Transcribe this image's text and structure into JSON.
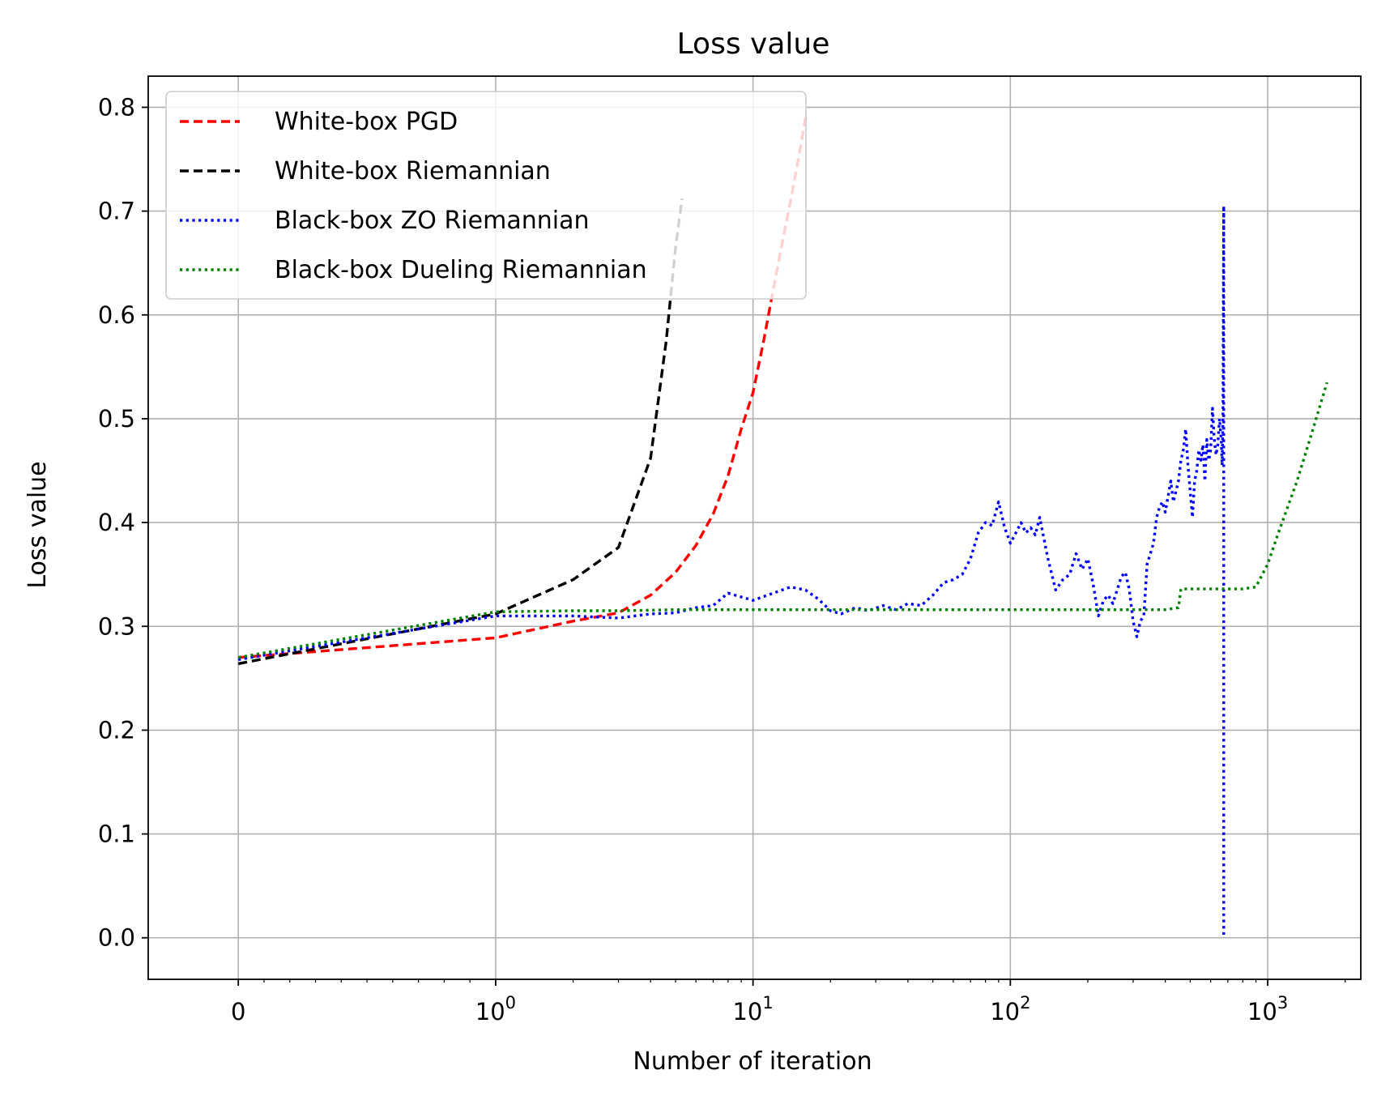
{
  "chart_data": {
    "type": "line",
    "title": "Loss value",
    "xlabel": "Number of iteration",
    "ylabel": "Loss value",
    "xscale": "symlog",
    "xlim": [
      -0.35,
      2300
    ],
    "ylim": [
      -0.04,
      0.83
    ],
    "grid": true,
    "legend_position": "upper-left",
    "xticks": [
      {
        "value": 0,
        "base": "0",
        "exp": ""
      },
      {
        "value": 1,
        "base": "10",
        "exp": "0"
      },
      {
        "value": 10,
        "base": "10",
        "exp": "1"
      },
      {
        "value": 100,
        "base": "10",
        "exp": "2"
      },
      {
        "value": 1000,
        "base": "10",
        "exp": "3"
      }
    ],
    "yticks": [
      {
        "value": 0.0,
        "label": "0.0"
      },
      {
        "value": 0.1,
        "label": "0.1"
      },
      {
        "value": 0.2,
        "label": "0.2"
      },
      {
        "value": 0.3,
        "label": "0.3"
      },
      {
        "value": 0.4,
        "label": "0.4"
      },
      {
        "value": 0.5,
        "label": "0.5"
      },
      {
        "value": 0.6,
        "label": "0.6"
      },
      {
        "value": 0.7,
        "label": "0.7"
      },
      {
        "value": 0.8,
        "label": "0.8"
      }
    ],
    "series": [
      {
        "name": "White-box PGD",
        "color": "#ff0000",
        "style": "dashed",
        "x": [
          0,
          1,
          2,
          3,
          4,
          5,
          6,
          7,
          8,
          9,
          10,
          11,
          12,
          13,
          14,
          15,
          16
        ],
        "y": [
          0.27,
          0.289,
          0.305,
          0.313,
          0.33,
          0.352,
          0.378,
          0.408,
          0.445,
          0.49,
          0.525,
          0.575,
          0.625,
          0.67,
          0.71,
          0.75,
          0.79
        ]
      },
      {
        "name": "White-box Riemannian",
        "color": "#000000",
        "style": "dashed",
        "x": [
          0,
          1,
          2,
          3,
          4,
          4.6,
          5,
          5.3
        ],
        "y": [
          0.264,
          0.312,
          0.345,
          0.376,
          0.462,
          0.575,
          0.665,
          0.712
        ]
      },
      {
        "name": "Black-box ZO Riemannian",
        "color": "#0000ff",
        "style": "dotted",
        "x": [
          0,
          1,
          2,
          3,
          4,
          5,
          6,
          7,
          8,
          10,
          12,
          14,
          16,
          18,
          20,
          22,
          25,
          28,
          32,
          36,
          40,
          45,
          50,
          55,
          60,
          65,
          70,
          75,
          80,
          85,
          90,
          95,
          100,
          105,
          110,
          115,
          120,
          125,
          130,
          140,
          150,
          160,
          170,
          180,
          190,
          200,
          210,
          220,
          230,
          240,
          250,
          260,
          270,
          280,
          290,
          300,
          310,
          320,
          330,
          340,
          350,
          360,
          370,
          380,
          390,
          400,
          410,
          420,
          430,
          440,
          450,
          460,
          470,
          480,
          490,
          500,
          510,
          520,
          530,
          540,
          550,
          560,
          570,
          580,
          590,
          600,
          610,
          620,
          630,
          640,
          650,
          660,
          665,
          670,
          675,
          675
        ],
        "y": [
          0.268,
          0.31,
          0.31,
          0.308,
          0.312,
          0.313,
          0.318,
          0.32,
          0.332,
          0.325,
          0.332,
          0.338,
          0.335,
          0.326,
          0.315,
          0.312,
          0.318,
          0.315,
          0.32,
          0.316,
          0.322,
          0.32,
          0.33,
          0.342,
          0.345,
          0.35,
          0.365,
          0.39,
          0.4,
          0.397,
          0.42,
          0.395,
          0.38,
          0.39,
          0.4,
          0.39,
          0.395,
          0.388,
          0.405,
          0.365,
          0.335,
          0.345,
          0.35,
          0.37,
          0.355,
          0.365,
          0.34,
          0.31,
          0.325,
          0.33,
          0.322,
          0.335,
          0.348,
          0.352,
          0.335,
          0.305,
          0.29,
          0.305,
          0.31,
          0.36,
          0.37,
          0.38,
          0.405,
          0.415,
          0.42,
          0.41,
          0.425,
          0.44,
          0.42,
          0.43,
          0.44,
          0.46,
          0.47,
          0.49,
          0.455,
          0.43,
          0.405,
          0.44,
          0.45,
          0.47,
          0.46,
          0.475,
          0.44,
          0.48,
          0.46,
          0.47,
          0.51,
          0.48,
          0.465,
          0.475,
          0.5,
          0.48,
          0.455,
          0.5,
          0.705,
          0.0
        ]
      },
      {
        "name": "Black-box Dueling Riemannian",
        "color": "#008000",
        "style": "dotted",
        "x": [
          0,
          1,
          2,
          3,
          5,
          10,
          20,
          50,
          100,
          200,
          300,
          400,
          450,
          460,
          600,
          800,
          900,
          1000,
          1100,
          1300,
          1500,
          1700
        ],
        "y": [
          0.27,
          0.314,
          0.315,
          0.315,
          0.316,
          0.316,
          0.316,
          0.316,
          0.316,
          0.316,
          0.316,
          0.316,
          0.318,
          0.336,
          0.336,
          0.336,
          0.338,
          0.36,
          0.39,
          0.44,
          0.49,
          0.535
        ]
      }
    ]
  }
}
